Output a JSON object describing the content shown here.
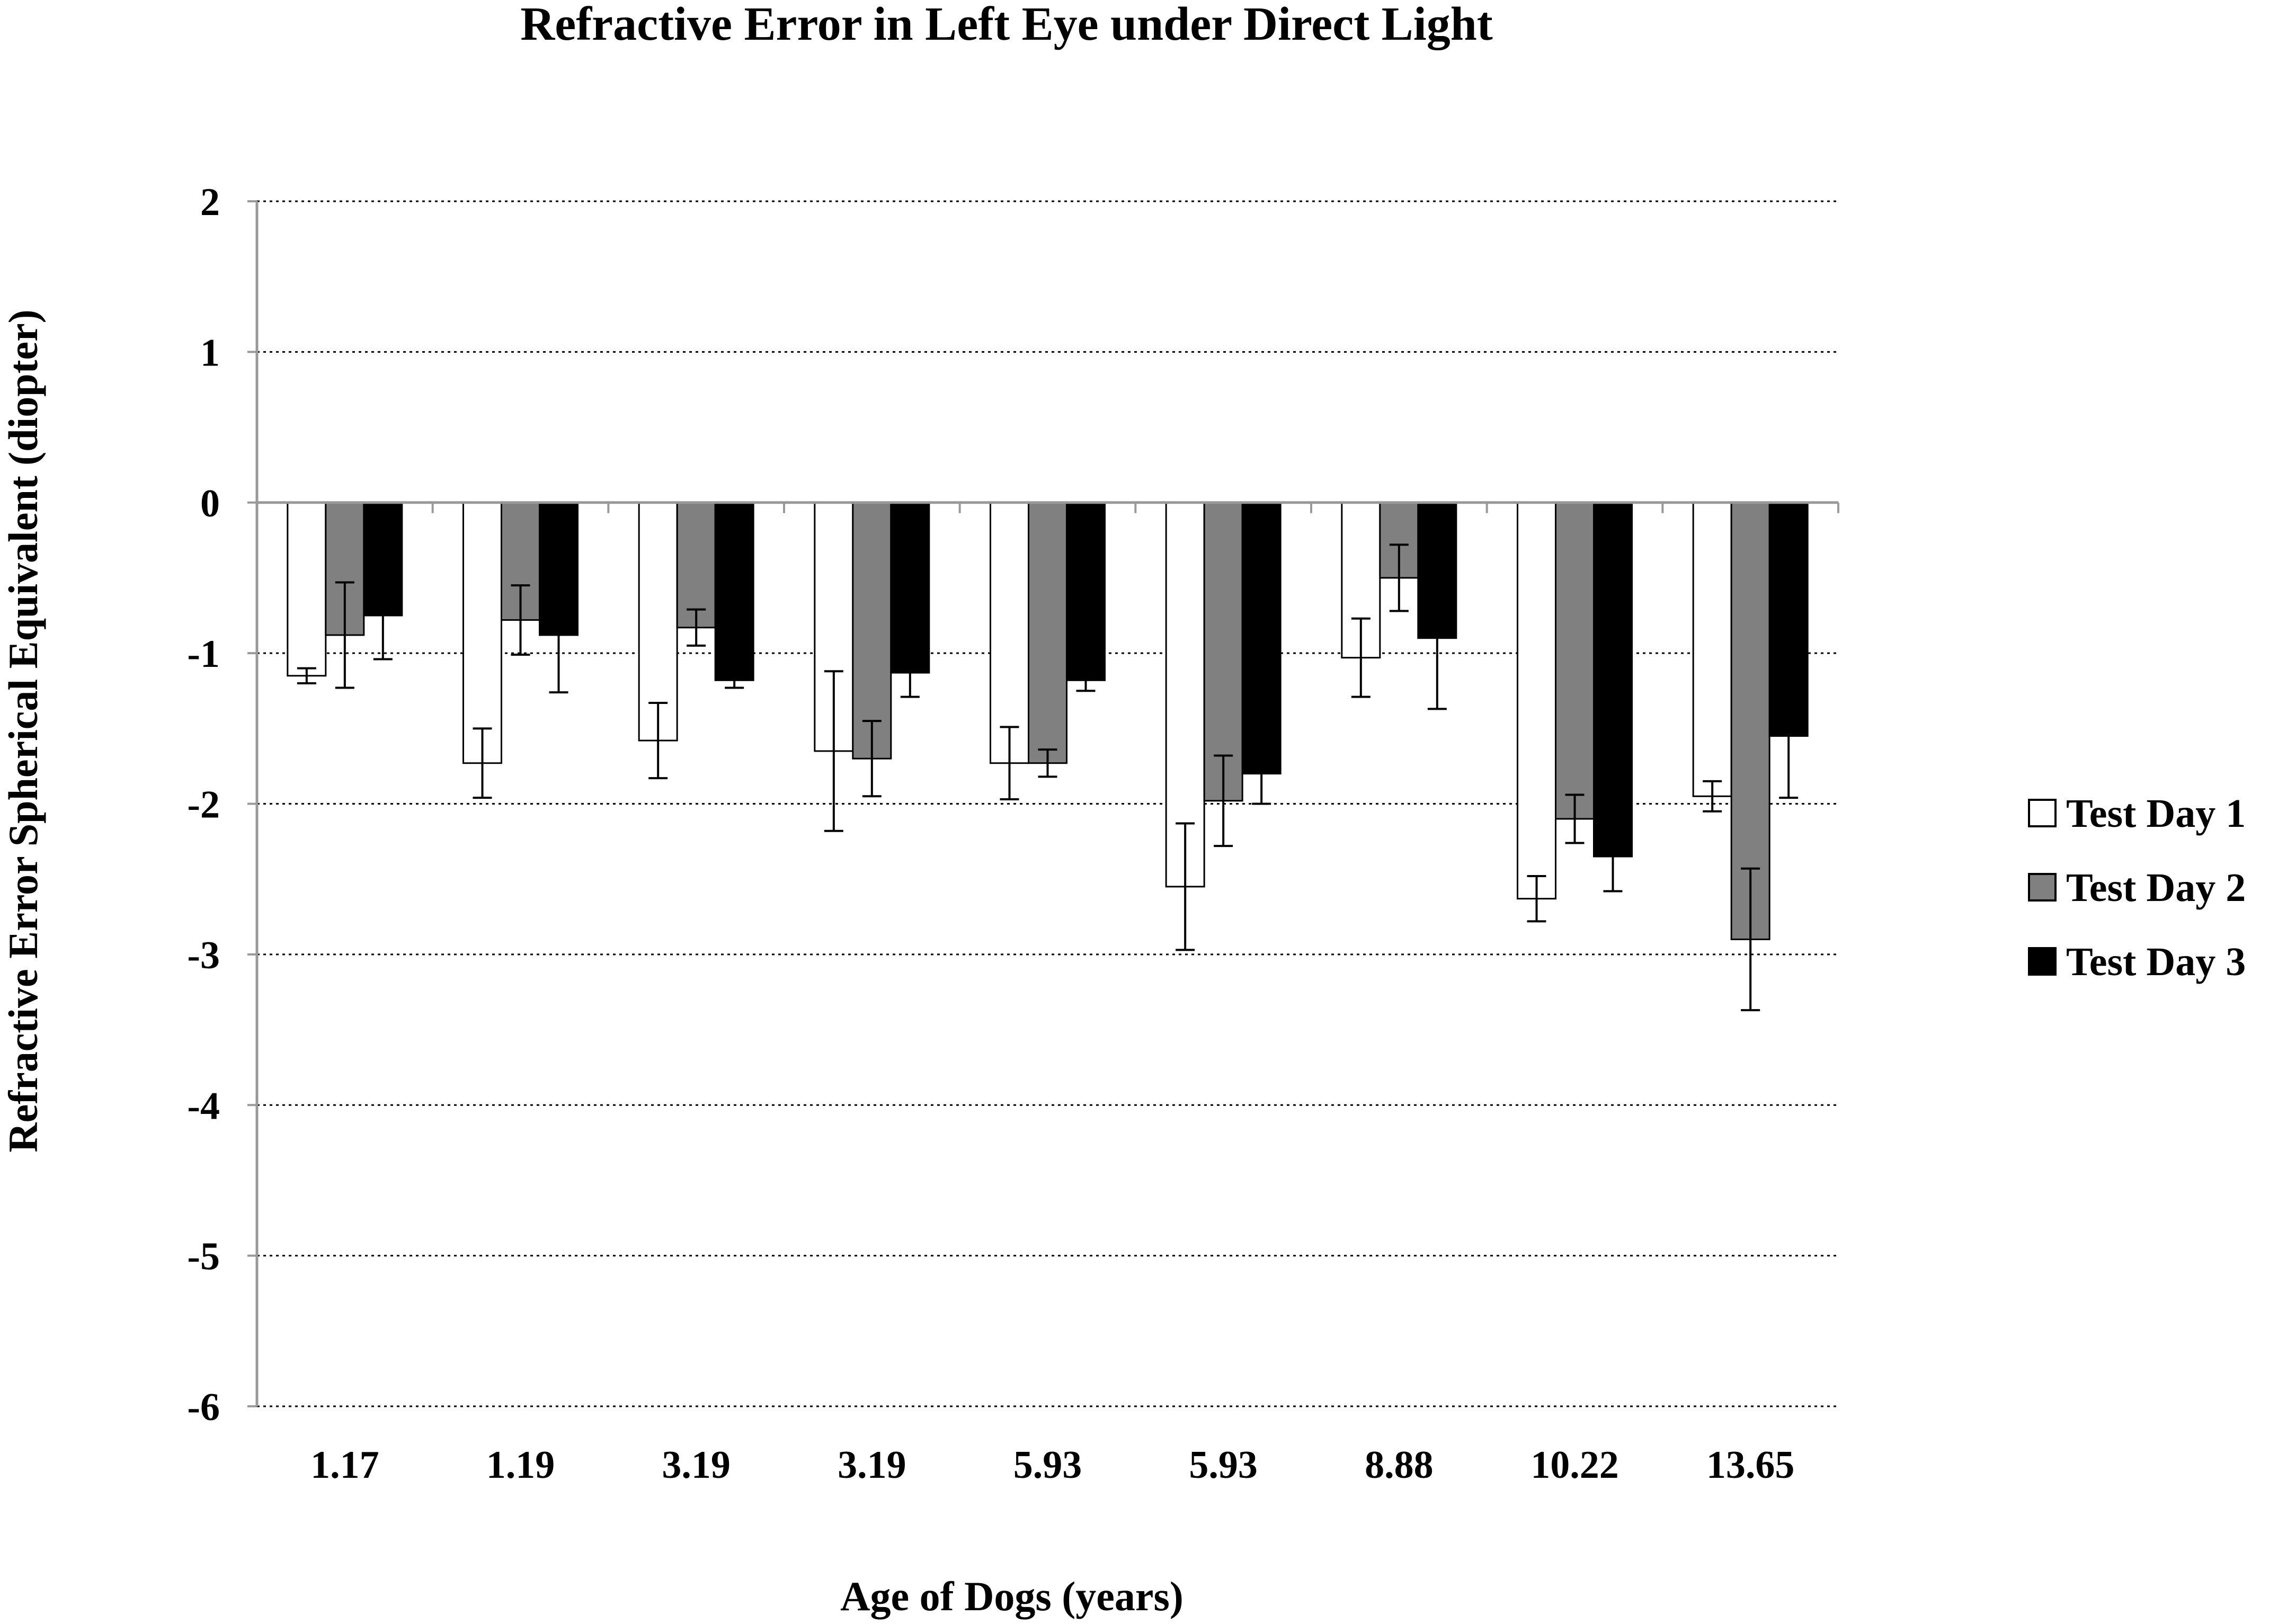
{
  "chart_data": {
    "type": "bar",
    "title": "Refractive Error in Left Eye under Direct Light",
    "xlabel": "Age of Dogs (years)",
    "ylabel": "Refractive Error Spherical Equivalent (diopter)",
    "ylim": [
      -6,
      2
    ],
    "yticks": [
      "2",
      "1",
      "0",
      "-1",
      "-2",
      "-3",
      "-4",
      "-5",
      "-6"
    ],
    "grid": true,
    "legend_position": "right",
    "categories": [
      "1.17",
      "1.19",
      "3.19",
      "3.19",
      "5.93",
      "5.93",
      "8.88",
      "10.22",
      "13.65"
    ],
    "series": [
      {
        "name": "Test Day 1",
        "color": "#ffffff",
        "values": [
          -1.15,
          -1.73,
          -1.58,
          -1.65,
          -1.73,
          -2.55,
          -1.03,
          -2.63,
          -1.95
        ],
        "errors": [
          0.05,
          0.23,
          0.25,
          0.53,
          0.24,
          0.42,
          0.26,
          0.15,
          0.1
        ]
      },
      {
        "name": "Test Day 2",
        "color": "#808080",
        "values": [
          -0.88,
          -0.78,
          -0.83,
          -1.7,
          -1.73,
          -1.98,
          -0.5,
          -2.1,
          -2.9
        ],
        "errors": [
          0.35,
          0.23,
          0.12,
          0.25,
          0.09,
          0.3,
          0.22,
          0.16,
          0.47
        ]
      },
      {
        "name": "Test Day 3",
        "color": "#000000",
        "values": [
          -0.75,
          -0.88,
          -1.18,
          -1.13,
          -1.18,
          -1.8,
          -0.9,
          -2.35,
          -1.55
        ],
        "errors": [
          0.29,
          0.38,
          0.05,
          0.16,
          0.07,
          0.2,
          0.47,
          0.23,
          0.41
        ]
      }
    ]
  }
}
